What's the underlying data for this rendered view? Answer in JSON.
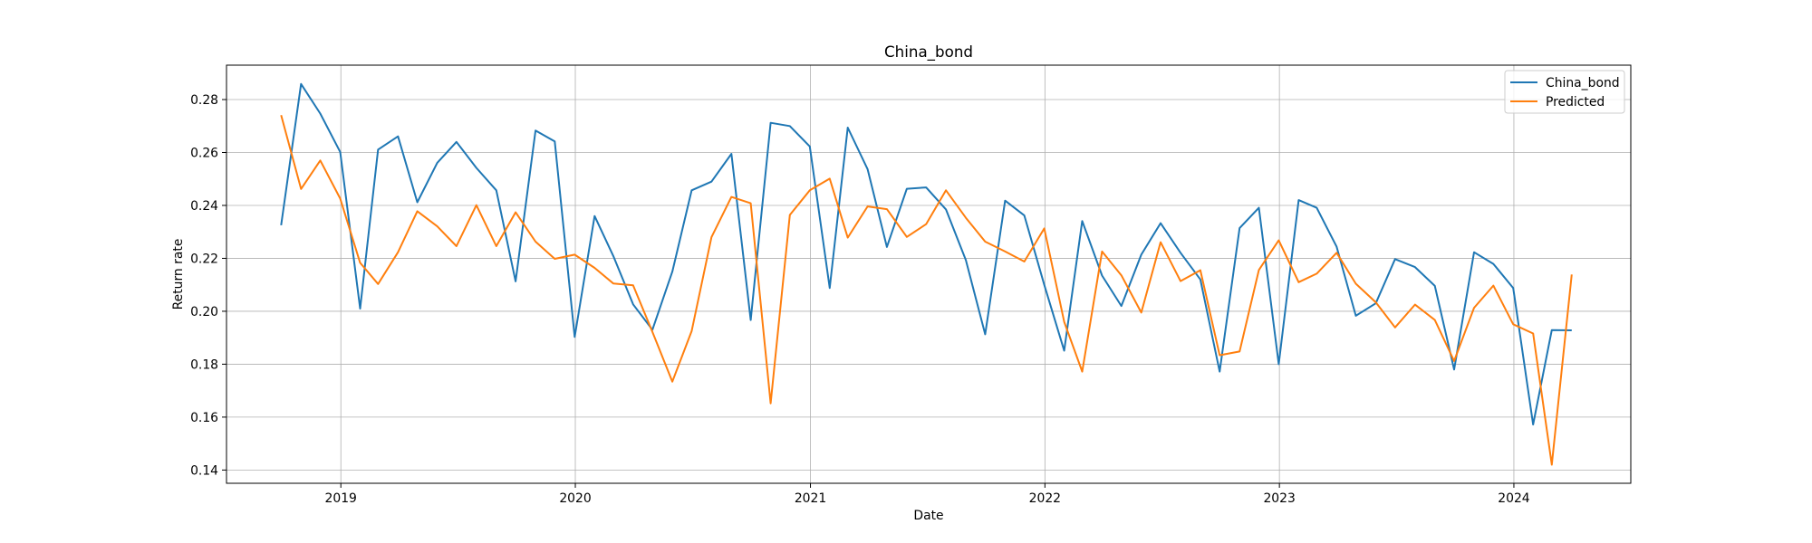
{
  "chart_data": {
    "type": "line",
    "title": "China_bond",
    "xlabel": "Date",
    "ylabel": "Return rate",
    "ylim": [
      0.135,
      0.293
    ],
    "xlim": [
      "2018-07-07",
      "2024-07-01"
    ],
    "grid": true,
    "legend_placement": "top-right",
    "x_ticks": [
      "2019",
      "2020",
      "2021",
      "2022",
      "2023",
      "2024"
    ],
    "y_ticks": [
      "0.14",
      "0.16",
      "0.18",
      "0.20",
      "0.22",
      "0.24",
      "0.26",
      "0.28"
    ],
    "x": [
      "2018-09-30",
      "2018-10-31",
      "2018-11-30",
      "2018-12-31",
      "2019-01-31",
      "2019-02-28",
      "2019-03-31",
      "2019-04-30",
      "2019-05-31",
      "2019-06-30",
      "2019-07-31",
      "2019-08-31",
      "2019-09-30",
      "2019-10-31",
      "2019-11-30",
      "2019-12-31",
      "2020-01-31",
      "2020-02-29",
      "2020-03-31",
      "2020-04-30",
      "2020-05-31",
      "2020-06-30",
      "2020-07-31",
      "2020-08-31",
      "2020-09-30",
      "2020-10-31",
      "2020-11-30",
      "2020-12-31",
      "2021-01-31",
      "2021-02-28",
      "2021-03-31",
      "2021-04-30",
      "2021-05-31",
      "2021-06-30",
      "2021-07-31",
      "2021-08-31",
      "2021-09-30",
      "2021-10-31",
      "2021-11-30",
      "2021-12-31",
      "2022-01-31",
      "2022-02-28",
      "2022-03-31",
      "2022-04-30",
      "2022-05-31",
      "2022-06-30",
      "2022-07-31",
      "2022-08-31",
      "2022-09-30",
      "2022-10-31",
      "2022-11-30",
      "2022-12-31",
      "2023-01-31",
      "2023-02-28",
      "2023-03-31",
      "2023-04-30",
      "2023-05-31",
      "2023-06-30",
      "2023-07-31",
      "2023-08-31",
      "2023-09-30",
      "2023-10-31",
      "2023-11-30",
      "2023-12-31",
      "2024-01-31",
      "2024-02-29",
      "2024-03-31"
    ],
    "series": [
      {
        "name": "China_bond",
        "color": "#1f77b4",
        "values": [
          0.2325,
          0.2859,
          0.2747,
          0.2602,
          0.201,
          0.2611,
          0.2661,
          0.2412,
          0.2561,
          0.264,
          0.2542,
          0.2457,
          0.2113,
          0.2683,
          0.2642,
          0.1903,
          0.236,
          0.2209,
          0.2026,
          0.193,
          0.215,
          0.2457,
          0.249,
          0.2595,
          0.1967,
          0.2712,
          0.27,
          0.2623,
          0.2088,
          0.2694,
          0.2537,
          0.2243,
          0.2463,
          0.2468,
          0.2385,
          0.2193,
          0.1913,
          0.2418,
          0.2362,
          0.21,
          0.1851,
          0.2341,
          0.2135,
          0.202,
          0.2214,
          0.2333,
          0.2221,
          0.212,
          0.1772,
          0.2314,
          0.2391,
          0.18,
          0.242,
          0.2391,
          0.2244,
          0.1983,
          0.203,
          0.2197,
          0.2167,
          0.2096,
          0.178,
          0.2223,
          0.2179,
          0.2088,
          0.1572,
          0.1929,
          0.1928
        ]
      },
      {
        "name": "Predicted",
        "color": "#ff7f0e",
        "values": [
          0.2741,
          0.2462,
          0.257,
          0.2426,
          0.2183,
          0.2103,
          0.2223,
          0.2378,
          0.2321,
          0.2246,
          0.2401,
          0.2246,
          0.2374,
          0.2263,
          0.2198,
          0.2214,
          0.2164,
          0.2105,
          0.2098,
          0.1922,
          0.1734,
          0.1925,
          0.228,
          0.2432,
          0.2408,
          0.1652,
          0.2364,
          0.2457,
          0.2501,
          0.2278,
          0.2396,
          0.2386,
          0.2281,
          0.2329,
          0.2457,
          0.2353,
          0.2263,
          0.2226,
          0.2188,
          0.2313,
          0.196,
          0.1772,
          0.2226,
          0.2136,
          0.1995,
          0.2261,
          0.2114,
          0.2155,
          0.1834,
          0.1848,
          0.2156,
          0.2268,
          0.211,
          0.2142,
          0.2221,
          0.2104,
          0.2034,
          0.1939,
          0.2025,
          0.1967,
          0.1812,
          0.2013,
          0.2097,
          0.1951,
          0.1916,
          0.142,
          0.2139
        ]
      }
    ]
  }
}
